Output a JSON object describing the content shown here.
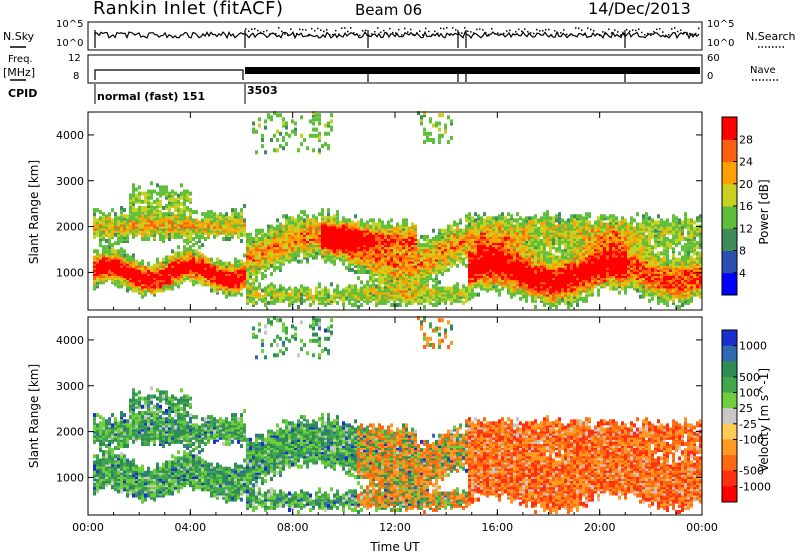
{
  "header": {
    "station": "Rankin Inlet (fitACF)",
    "beam": "Beam 06",
    "date": "14/Dec/2013"
  },
  "summary": {
    "nsky_label": "N.Sky",
    "nsearch_label": "N.Search",
    "freq_label": "Freq.",
    "freq_unit": "[MHz]",
    "nave_label": "Nave",
    "cpid_label": "CPID",
    "left_ticks_top": [
      "10^5",
      "10^0"
    ],
    "right_ticks_top": [
      "10^5",
      "10^0"
    ],
    "left_ticks_freq": [
      "12",
      "8"
    ],
    "right_ticks_nave": [
      "60",
      "0"
    ],
    "cpid_1": "normal (fast) 151",
    "cpid_2": "3503"
  },
  "colors": {
    "power_scale": [
      "#0000ff",
      "#2a4fb0",
      "#3f8c5a",
      "#5fbf3a",
      "#c8d020",
      "#ffa000",
      "#ff6010",
      "#ff0000"
    ],
    "velocity_scale": [
      "#1a2fd0",
      "#2f6ab0",
      "#2f8c55",
      "#3fa84a",
      "#6fcf3a",
      "#c8c8c8",
      "#ffcc55",
      "#ff9922",
      "#ff6a10",
      "#ff3010",
      "#ff0000"
    ]
  },
  "chart_data": [
    {
      "type": "heatmap",
      "title": "Power",
      "ylabel": "Slant Range [km]",
      "xlabel": "",
      "x_ticks": [
        "00:00",
        "04:00",
        "08:00",
        "12:00",
        "16:00",
        "20:00",
        "00:00"
      ],
      "y_ticks": [
        "1000",
        "2000",
        "3000",
        "4000"
      ],
      "ylim": [
        180,
        4500
      ],
      "colorbar": {
        "label": "Power [dB]",
        "ticks": [
          "4",
          "8",
          "12",
          "16",
          "20",
          "24",
          "28"
        ]
      }
    },
    {
      "type": "heatmap",
      "title": "Velocity",
      "ylabel": "Slant Range [km]",
      "xlabel": "Time UT",
      "x_ticks": [
        "00:00",
        "04:00",
        "08:00",
        "12:00",
        "16:00",
        "20:00",
        "00:00"
      ],
      "y_ticks": [
        "1000",
        "2000",
        "3000",
        "4000"
      ],
      "ylim": [
        180,
        4500
      ],
      "colorbar": {
        "label": "Velocity [m s^-1]",
        "ticks": [
          "1000",
          "500",
          "100",
          "25",
          "-25",
          "-100",
          "-500",
          "-1000"
        ]
      }
    }
  ]
}
